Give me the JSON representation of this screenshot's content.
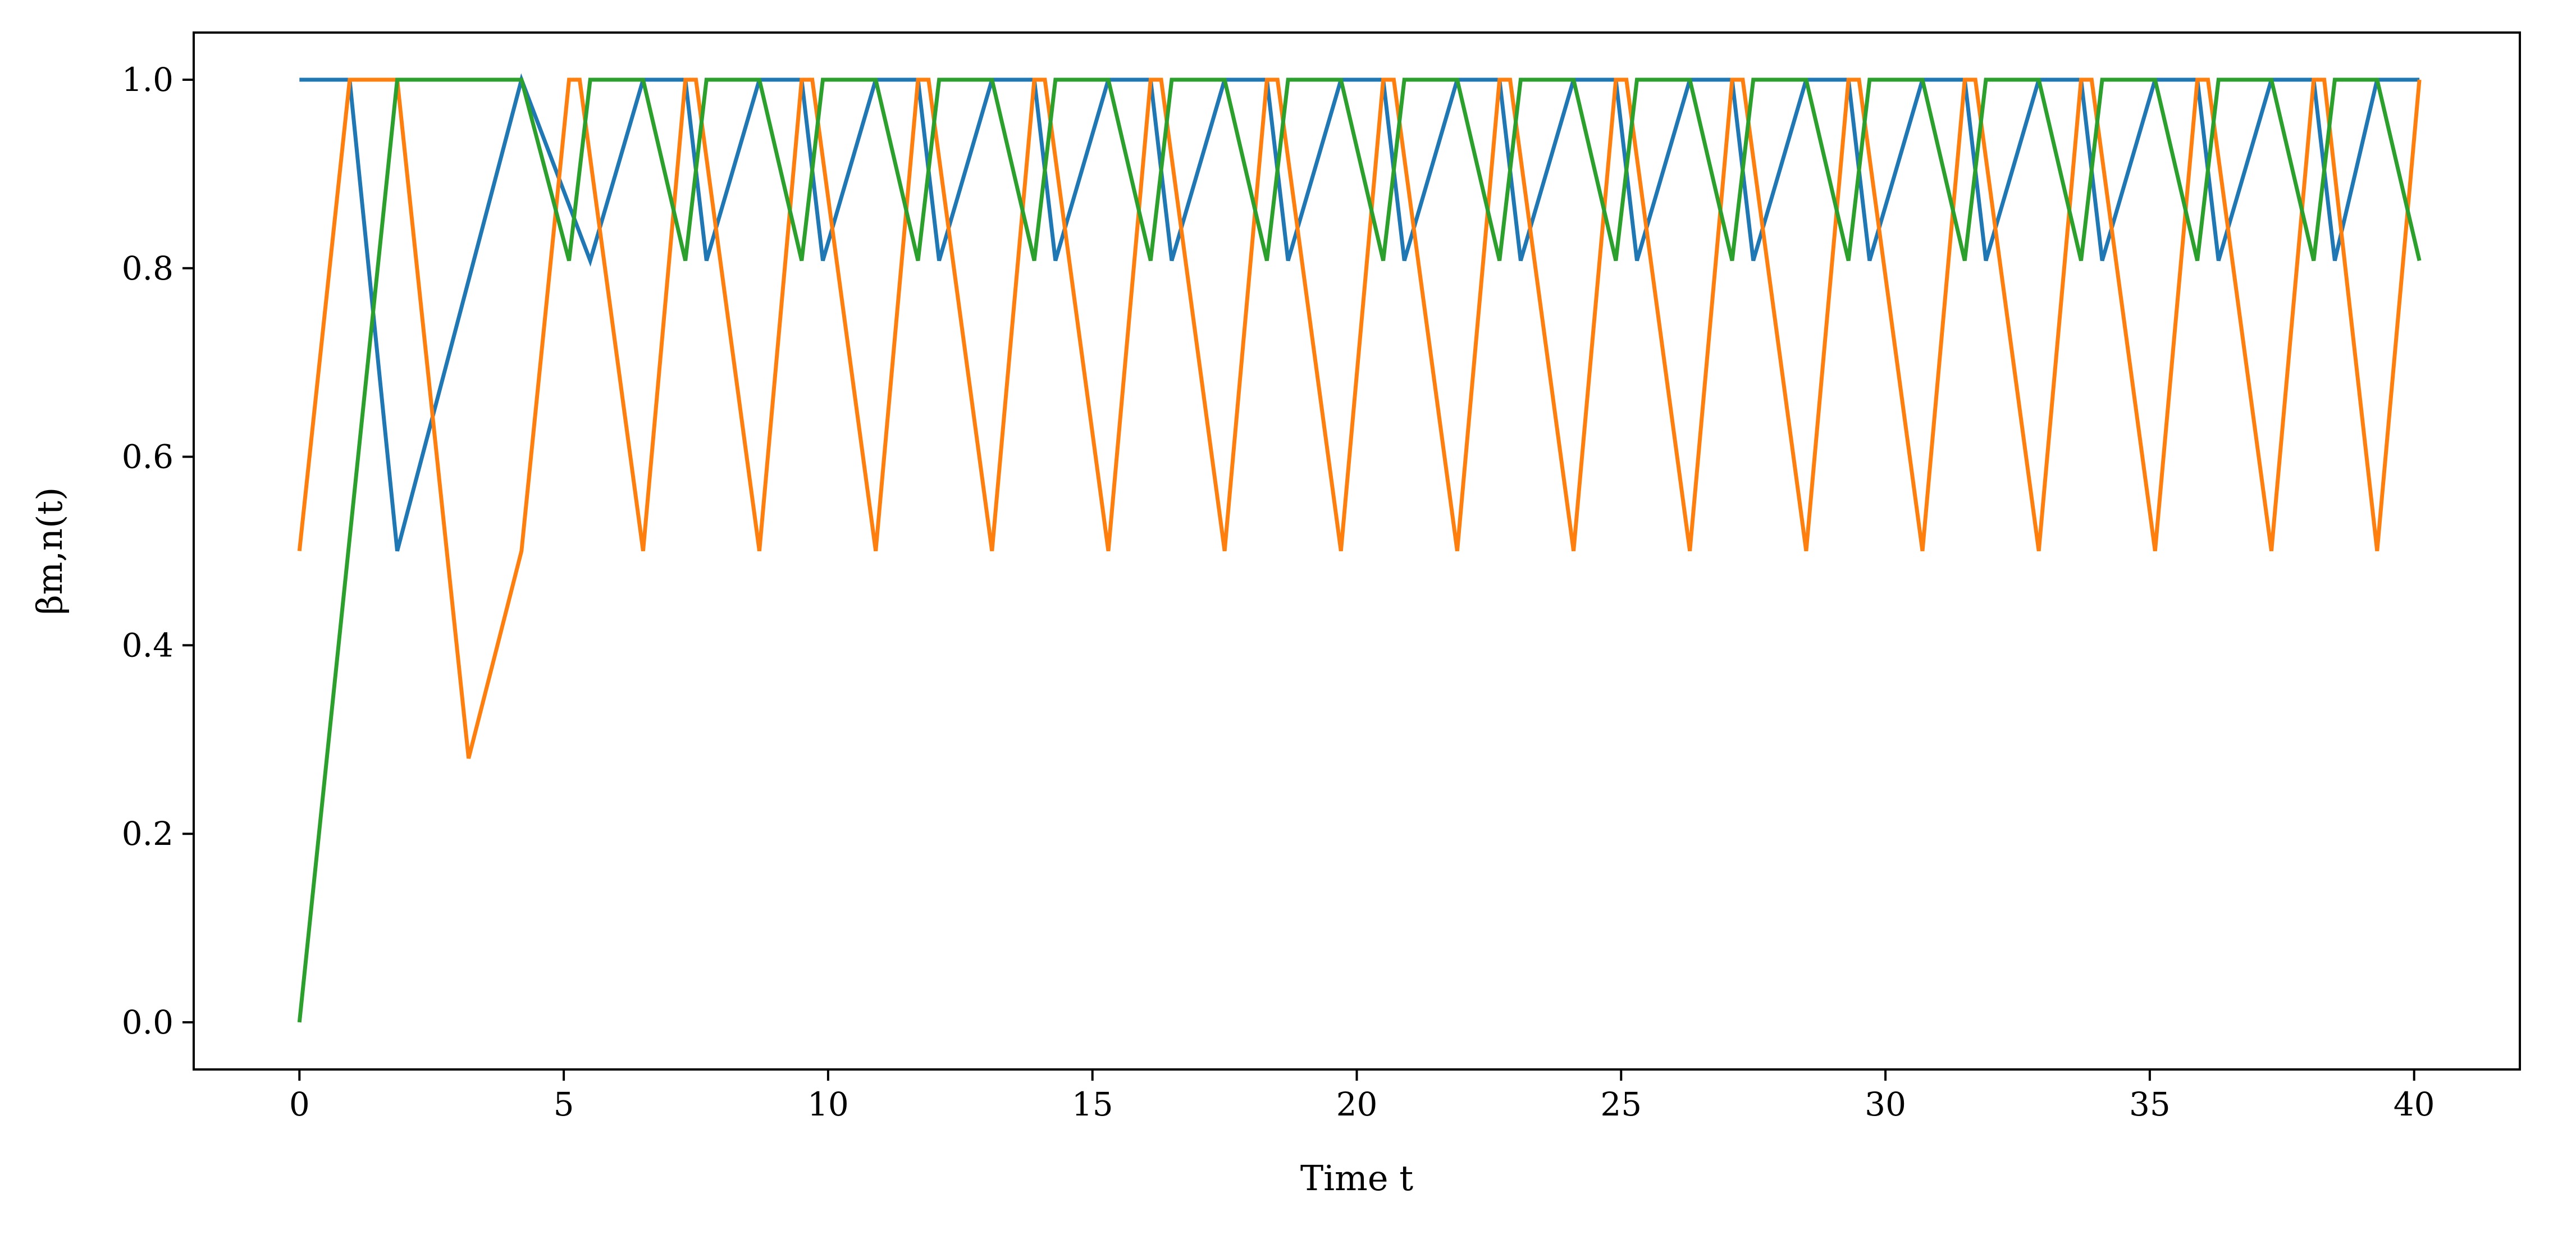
{
  "chart_data": {
    "type": "line",
    "title": "",
    "xlabel": "Time t",
    "ylabel": "βm,n(t)",
    "xlim": [
      -2,
      42
    ],
    "ylim": [
      -0.05,
      1.05
    ],
    "xticks": [
      0,
      5,
      10,
      15,
      20,
      25,
      30,
      35,
      40
    ],
    "yticks": [
      0.0,
      0.2,
      0.4,
      0.6,
      0.8,
      1.0
    ],
    "xtick_labels": [
      "0",
      "5",
      "10",
      "15",
      "20",
      "25",
      "30",
      "35",
      "40"
    ],
    "ytick_labels": [
      "0.0",
      "0.2",
      "0.4",
      "0.6",
      "0.8",
      "1.0"
    ],
    "grid": false,
    "legend": "none",
    "series": [
      {
        "color": "#1f77b4",
        "x": [
          0,
          0.95,
          1.85,
          4.2,
          5.5,
          6.5,
          7.3,
          7.7,
          8.7,
          9.5,
          9.9,
          10.9,
          11.7,
          12.1,
          13.1,
          13.9,
          14.3,
          15.3,
          16.1,
          16.5,
          17.5,
          18.3,
          18.7,
          19.7,
          20.5,
          20.9,
          21.9,
          22.7,
          23.1,
          24.1,
          24.9,
          25.3,
          26.3,
          27.1,
          27.5,
          28.5,
          29.3,
          29.7,
          30.7,
          31.5,
          31.9,
          32.9,
          33.7,
          34.1,
          35.1,
          35.9,
          36.3,
          37.3,
          38.1,
          38.5,
          39.3,
          40.1
        ],
        "y": [
          1.0,
          1.0,
          0.5,
          1.0,
          0.808,
          1.0,
          1.0,
          0.808,
          1.0,
          1.0,
          0.808,
          1.0,
          1.0,
          0.808,
          1.0,
          1.0,
          0.808,
          1.0,
          1.0,
          0.808,
          1.0,
          1.0,
          0.808,
          1.0,
          1.0,
          0.808,
          1.0,
          1.0,
          0.808,
          1.0,
          1.0,
          0.808,
          1.0,
          1.0,
          0.808,
          1.0,
          1.0,
          0.808,
          1.0,
          1.0,
          0.808,
          1.0,
          1.0,
          0.808,
          1.0,
          1.0,
          0.808,
          1.0,
          1.0,
          0.808,
          1.0,
          1.0
        ]
      },
      {
        "color": "#ff7f0e",
        "x": [
          0,
          0.95,
          1.85,
          3.2,
          4.2,
          5.1,
          5.3,
          6.5,
          7.3,
          7.5,
          8.7,
          9.5,
          9.7,
          10.9,
          11.7,
          11.9,
          13.1,
          13.9,
          14.1,
          15.3,
          16.1,
          16.3,
          17.5,
          18.3,
          18.5,
          19.7,
          20.5,
          20.7,
          21.9,
          22.7,
          22.9,
          24.1,
          24.9,
          25.1,
          26.3,
          27.1,
          27.3,
          28.5,
          29.3,
          29.5,
          30.7,
          31.5,
          31.7,
          32.9,
          33.7,
          33.9,
          35.1,
          35.9,
          36.1,
          37.3,
          38.1,
          38.3,
          39.3,
          40.1
        ],
        "y": [
          0.5,
          1.0,
          1.0,
          0.28,
          0.5,
          1.0,
          1.0,
          0.5,
          1.0,
          1.0,
          0.5,
          1.0,
          1.0,
          0.5,
          1.0,
          1.0,
          0.5,
          1.0,
          1.0,
          0.5,
          1.0,
          1.0,
          0.5,
          1.0,
          1.0,
          0.5,
          1.0,
          1.0,
          0.5,
          1.0,
          1.0,
          0.5,
          1.0,
          1.0,
          0.5,
          1.0,
          1.0,
          0.5,
          1.0,
          1.0,
          0.5,
          1.0,
          1.0,
          0.5,
          1.0,
          1.0,
          0.5,
          1.0,
          1.0,
          0.5,
          1.0,
          1.0,
          0.5,
          1.0
        ]
      },
      {
        "color": "#2ca02c",
        "x": [
          0,
          1.85,
          4.2,
          5.1,
          5.5,
          6.5,
          7.3,
          7.7,
          8.7,
          9.5,
          9.9,
          10.9,
          11.7,
          12.1,
          13.1,
          13.9,
          14.3,
          15.3,
          16.1,
          16.5,
          17.5,
          18.3,
          18.7,
          19.7,
          20.5,
          20.9,
          21.9,
          22.7,
          23.1,
          24.1,
          24.9,
          25.3,
          26.3,
          27.1,
          27.5,
          28.5,
          29.3,
          29.7,
          30.7,
          31.5,
          31.9,
          32.9,
          33.7,
          34.1,
          35.1,
          35.9,
          36.3,
          37.3,
          38.1,
          38.5,
          39.3,
          40.1
        ],
        "y": [
          0.0,
          1.0,
          1.0,
          0.808,
          1.0,
          1.0,
          0.808,
          1.0,
          1.0,
          0.808,
          1.0,
          1.0,
          0.808,
          1.0,
          1.0,
          0.808,
          1.0,
          1.0,
          0.808,
          1.0,
          1.0,
          0.808,
          1.0,
          1.0,
          0.808,
          1.0,
          1.0,
          0.808,
          1.0,
          1.0,
          0.808,
          1.0,
          1.0,
          0.808,
          1.0,
          1.0,
          0.808,
          1.0,
          1.0,
          0.808,
          1.0,
          1.0,
          0.808,
          1.0,
          1.0,
          0.808,
          1.0,
          1.0,
          0.808,
          1.0,
          1.0,
          0.808
        ]
      }
    ]
  }
}
